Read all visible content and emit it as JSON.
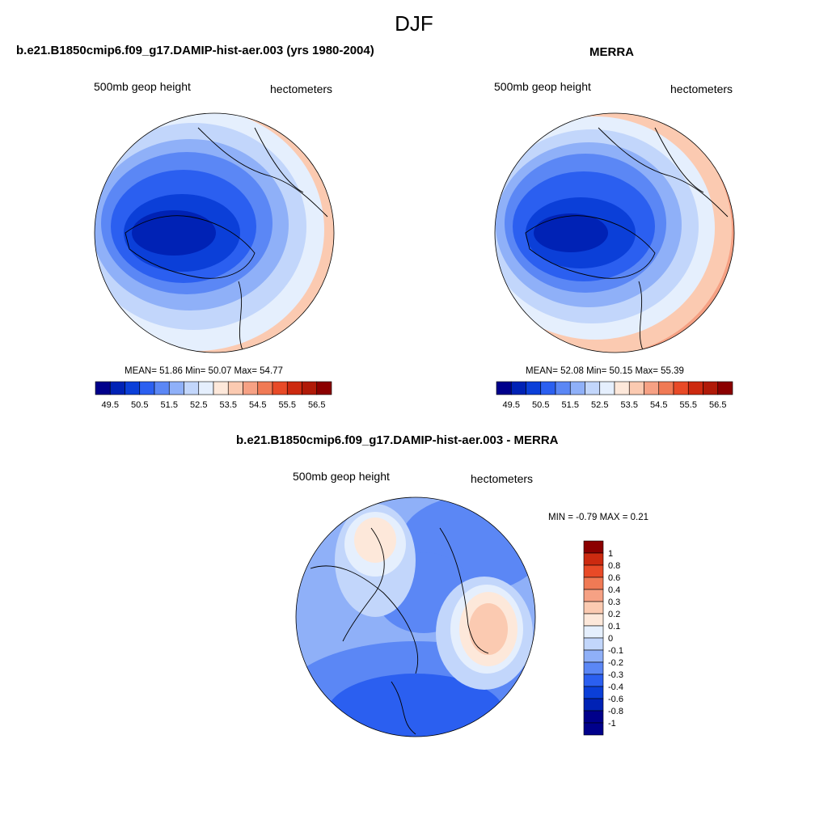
{
  "title": "DJF",
  "palette": [
    "#00008b",
    "#0022b5",
    "#0b3fd8",
    "#2b5ff0",
    "#5b87f5",
    "#8fb0f8",
    "#c2d6fb",
    "#e5effd",
    "#fde8da",
    "#fbcab1",
    "#f6a184",
    "#f07a55",
    "#e84a27",
    "#cc2a10",
    "#b01a08",
    "#8b0000"
  ],
  "diff_palette": [
    "#00008b",
    "#0022b5",
    "#0b3fd8",
    "#2b5ff0",
    "#5b87f5",
    "#8fb0f8",
    "#c2d6fb",
    "#e5effd",
    "#fde8da",
    "#fbcab1",
    "#f6a184",
    "#f07a55",
    "#e84a27",
    "#cc2a10",
    "#8b0000"
  ],
  "panels": [
    {
      "title": "b.e21.B1850cmip6.f09_g17.DAMIP-hist-aer.003 (yrs 1980-2004)",
      "left_label": "500mb geop height",
      "right_label": "hectometers",
      "stats": "MEAN=  51.86  Min=  50.07  Max=  54.77",
      "colorbar_ticks": [
        "49.5",
        "50.5",
        "51.5",
        "52.5",
        "53.5",
        "54.5",
        "55.5",
        "56.5"
      ]
    },
    {
      "title": "MERRA",
      "left_label": "500mb geop height",
      "right_label": "hectometers",
      "stats": "MEAN=  52.08  Min=  50.15  Max=  55.39",
      "colorbar_ticks": [
        "49.5",
        "50.5",
        "51.5",
        "52.5",
        "53.5",
        "54.5",
        "55.5",
        "56.5"
      ]
    },
    {
      "title": "b.e21.B1850cmip6.f09_g17.DAMIP-hist-aer.003 - MERRA",
      "left_label": "500mb geop height",
      "right_label": "hectometers",
      "stats": "MIN =  -0.79 MAX =   0.21",
      "colorbar_ticks": [
        "1",
        "0.8",
        "0.6",
        "0.4",
        "0.3",
        "0.2",
        "0.1",
        "0",
        "-0.1",
        "-0.2",
        "-0.3",
        "-0.4",
        "-0.6",
        "-0.8",
        "-1"
      ]
    }
  ]
}
